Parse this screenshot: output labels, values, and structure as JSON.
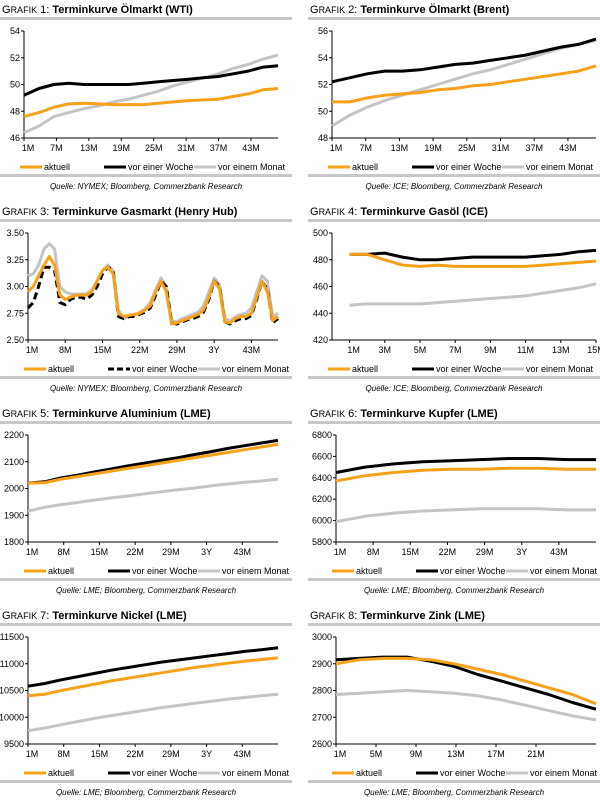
{
  "colors": {
    "aktuell": "#f7a11a",
    "woche": "#000000",
    "monat": "#c4c4c4"
  },
  "legend": [
    "aktuell",
    "vor einer Woche",
    "vor einem Monat"
  ],
  "chart_data": [
    {
      "type": "line",
      "prefix": "G",
      "prefix_small": "RAFIK",
      "num": "1",
      "title": "Terminkurve Ölmarkt (WTI)",
      "source": "Quelle: NYMEX; Bloomberg, Commerzbank Research",
      "ylim": [
        46,
        54
      ],
      "yticks": [
        "46",
        "48",
        "50",
        "52",
        "54"
      ],
      "xlim": [
        1,
        48
      ],
      "xticks": [
        {
          "label": "1M",
          "x": 1
        },
        {
          "label": "7M",
          "x": 7
        },
        {
          "label": "13M",
          "x": 13
        },
        {
          "label": "19M",
          "x": 19
        },
        {
          "label": "25M",
          "x": 25
        },
        {
          "label": "31M",
          "x": 31
        },
        {
          "label": "37M",
          "x": 37
        },
        {
          "label": "43M",
          "x": 43
        }
      ],
      "series": [
        {
          "name": "aktuell",
          "values": [
            47.6,
            47.9,
            48.3,
            48.55,
            48.6,
            48.55,
            48.5,
            48.5,
            48.5,
            48.6,
            48.7,
            48.8,
            48.85,
            48.9,
            49.1,
            49.3,
            49.6,
            49.7
          ]
        },
        {
          "name": "vor einer Woche",
          "values": [
            49.2,
            49.7,
            50.0,
            50.1,
            50.0,
            50.0,
            50.0,
            50.0,
            50.1,
            50.2,
            50.3,
            50.4,
            50.5,
            50.6,
            50.8,
            51.0,
            51.3,
            51.4
          ]
        },
        {
          "name": "vor einem Monat",
          "values": [
            46.4,
            46.9,
            47.6,
            47.9,
            48.2,
            48.4,
            48.7,
            48.9,
            49.2,
            49.5,
            49.9,
            50.2,
            50.5,
            50.8,
            51.2,
            51.5,
            51.9,
            52.2
          ]
        }
      ]
    },
    {
      "type": "line",
      "prefix": "G",
      "prefix_small": "RAFIK",
      "num": "2",
      "title": "Terminkurve Ölmarkt (Brent)",
      "source": "Quelle: ICE; Bloomberg, Commerzbank Research",
      "ylim": [
        48,
        56
      ],
      "yticks": [
        "48",
        "50",
        "52",
        "54",
        "56"
      ],
      "xlim": [
        1,
        48
      ],
      "xticks": [
        {
          "label": "1M",
          "x": 1
        },
        {
          "label": "7M",
          "x": 7
        },
        {
          "label": "13M",
          "x": 13
        },
        {
          "label": "19M",
          "x": 19
        },
        {
          "label": "25M",
          "x": 25
        },
        {
          "label": "31M",
          "x": 31
        },
        {
          "label": "37M",
          "x": 37
        },
        {
          "label": "43M",
          "x": 43
        }
      ],
      "series": [
        {
          "name": "aktuell",
          "values": [
            50.7,
            50.7,
            51.0,
            51.2,
            51.3,
            51.4,
            51.6,
            51.7,
            51.9,
            52.0,
            52.2,
            52.4,
            52.6,
            52.8,
            53.0,
            53.4
          ]
        },
        {
          "name": "vor einer Woche",
          "values": [
            52.2,
            52.5,
            52.8,
            53.0,
            53.0,
            53.1,
            53.3,
            53.5,
            53.6,
            53.8,
            54.0,
            54.2,
            54.5,
            54.8,
            55.0,
            55.4
          ]
        },
        {
          "name": "vor einem Monat",
          "values": [
            48.9,
            49.7,
            50.3,
            50.8,
            51.2,
            51.6,
            52.0,
            52.4,
            52.8,
            53.1,
            53.5,
            53.9,
            54.3,
            54.7,
            55.0,
            55.3
          ]
        }
      ]
    },
    {
      "type": "line",
      "prefix": "G",
      "prefix_small": "RAFIK",
      "num": "3",
      "title": "Terminkurve Gasmarkt (Henry Hub)",
      "source": "Quelle: NYMEX; Bloomberg, Commerzbank Research",
      "ylim": [
        2.5,
        3.5
      ],
      "yticks": [
        "2.50",
        "2.75",
        "3.00",
        "3.25",
        "3.50"
      ],
      "xlim": [
        1,
        48
      ],
      "xticks": [
        {
          "label": "1M",
          "x": 1
        },
        {
          "label": "8M",
          "x": 8
        },
        {
          "label": "15M",
          "x": 15
        },
        {
          "label": "22M",
          "x": 22
        },
        {
          "label": "29M",
          "x": 29
        },
        {
          "label": "3Y",
          "x": 36
        },
        {
          "label": "43M",
          "x": 43
        }
      ],
      "series": [
        {
          "name": "aktuell",
          "values": [
            2.95,
            3.0,
            3.1,
            3.2,
            3.28,
            3.2,
            2.92,
            2.88,
            2.9,
            2.92,
            2.92,
            2.92,
            2.95,
            3.05,
            3.15,
            3.18,
            3.12,
            2.75,
            2.72,
            2.73,
            2.74,
            2.75,
            2.78,
            2.82,
            2.95,
            3.05,
            2.95,
            2.65,
            2.66,
            2.68,
            2.7,
            2.72,
            2.74,
            2.78,
            2.9,
            3.05,
            2.98,
            2.67,
            2.66,
            2.7,
            2.72,
            2.72,
            2.75,
            2.9,
            3.05,
            2.95,
            2.68,
            2.72
          ]
        },
        {
          "name": "vor einer Woche",
          "values": [
            2.8,
            2.85,
            3.0,
            3.18,
            3.18,
            3.15,
            2.85,
            2.83,
            2.88,
            2.9,
            2.9,
            2.88,
            2.92,
            3.0,
            3.12,
            3.18,
            3.15,
            2.72,
            2.7,
            2.72,
            2.72,
            2.74,
            2.76,
            2.8,
            2.92,
            3.05,
            3.0,
            2.66,
            2.65,
            2.67,
            2.69,
            2.7,
            2.72,
            2.76,
            2.88,
            3.05,
            3.0,
            2.67,
            2.65,
            2.68,
            2.7,
            2.7,
            2.73,
            2.88,
            3.05,
            2.97,
            2.66,
            2.7
          ]
        },
        {
          "name": "vor einem Monat",
          "values": [
            3.1,
            3.12,
            3.2,
            3.35,
            3.4,
            3.35,
            3.0,
            2.95,
            2.93,
            2.93,
            2.93,
            2.93,
            2.97,
            3.05,
            3.15,
            3.2,
            3.15,
            2.78,
            2.7,
            2.72,
            2.73,
            2.76,
            2.79,
            2.85,
            2.97,
            3.08,
            3.0,
            2.68,
            2.67,
            2.7,
            2.72,
            2.74,
            2.76,
            2.82,
            2.95,
            3.08,
            3.02,
            2.7,
            2.68,
            2.72,
            2.74,
            2.75,
            2.8,
            2.95,
            3.1,
            3.05,
            2.72,
            2.75
          ]
        }
      ]
    },
    {
      "type": "line",
      "prefix": "G",
      "prefix_small": "RAFIK",
      "num": "4",
      "title": "Terminkurve Gasöl (ICE)",
      "source": "Quelle: ICE; Bloomberg, Commerzbank Research",
      "ylim": [
        420,
        500
      ],
      "yticks": [
        "420",
        "440",
        "460",
        "480",
        "500"
      ],
      "xlim": [
        0,
        15
      ],
      "xticks": [
        {
          "label": "1M",
          "x": 1
        },
        {
          "label": "3M",
          "x": 3
        },
        {
          "label": "5M",
          "x": 5
        },
        {
          "label": "7M",
          "x": 7
        },
        {
          "label": "9M",
          "x": 9
        },
        {
          "label": "11M",
          "x": 11
        },
        {
          "label": "13M",
          "x": 13
        },
        {
          "label": "15M",
          "x": 15
        }
      ],
      "series": [
        {
          "name": "aktuell",
          "values": [
            484,
            484,
            480,
            476,
            475,
            476,
            475,
            475,
            475,
            475,
            475,
            476,
            477,
            478,
            479
          ],
          "x0": 1
        },
        {
          "name": "vor einer Woche",
          "values": [
            484,
            484,
            485,
            482,
            480,
            480,
            481,
            482,
            482,
            482,
            482,
            483,
            484,
            486,
            487
          ],
          "x0": 1
        },
        {
          "name": "vor einem Monat",
          "values": [
            446,
            447,
            447,
            447,
            447,
            448,
            449,
            450,
            451,
            452,
            453,
            455,
            457,
            459,
            462
          ],
          "x0": 1
        }
      ]
    },
    {
      "type": "line",
      "prefix": "G",
      "prefix_small": "RAFIK",
      "num": "5",
      "title": "Terminkurve Aluminium (LME)",
      "source": "Quelle: LME; Bloomberg, Commerzbank Research",
      "ylim": [
        1800,
        2200
      ],
      "yticks": [
        "1800",
        "1900",
        "2000",
        "2100",
        "2200"
      ],
      "xlim": [
        1,
        50
      ],
      "xticks": [
        {
          "label": "1M",
          "x": 1
        },
        {
          "label": "8M",
          "x": 8
        },
        {
          "label": "15M",
          "x": 15
        },
        {
          "label": "22M",
          "x": 22
        },
        {
          "label": "29M",
          "x": 29
        },
        {
          "label": "3Y",
          "x": 36
        },
        {
          "label": "43M",
          "x": 43
        }
      ],
      "series": [
        {
          "name": "aktuell",
          "values": [
            2020,
            2022,
            2035,
            2045,
            2055,
            2065,
            2075,
            2085,
            2095,
            2105,
            2115,
            2125,
            2135,
            2145,
            2155,
            2165
          ]
        },
        {
          "name": "vor einer Woche",
          "values": [
            2020,
            2025,
            2040,
            2050,
            2062,
            2073,
            2085,
            2095,
            2105,
            2115,
            2127,
            2138,
            2150,
            2160,
            2170,
            2180
          ]
        },
        {
          "name": "vor einem Monat",
          "values": [
            1915,
            1930,
            1940,
            1948,
            1957,
            1965,
            1972,
            1980,
            1988,
            1995,
            2002,
            2010,
            2017,
            2023,
            2028,
            2035
          ]
        }
      ]
    },
    {
      "type": "line",
      "prefix": "G",
      "prefix_small": "RAFIK",
      "num": "6",
      "title": "Terminkurve Kupfer (LME)",
      "source": "Quelle: LME; Bloomberg, Commerzbank Research",
      "ylim": [
        5800,
        6800
      ],
      "yticks": [
        "5800",
        "6000",
        "6200",
        "6400",
        "6600",
        "6800"
      ],
      "xlim": [
        1,
        50
      ],
      "xticks": [
        {
          "label": "1M",
          "x": 1
        },
        {
          "label": "8M",
          "x": 8
        },
        {
          "label": "15M",
          "x": 15
        },
        {
          "label": "22M",
          "x": 22
        },
        {
          "label": "29M",
          "x": 29
        },
        {
          "label": "3Y",
          "x": 36
        },
        {
          "label": "43M",
          "x": 43
        }
      ],
      "series": [
        {
          "name": "aktuell",
          "values": [
            6370,
            6420,
            6450,
            6470,
            6480,
            6480,
            6490,
            6490,
            6480,
            6480
          ]
        },
        {
          "name": "vor einer Woche",
          "values": [
            6450,
            6500,
            6530,
            6550,
            6560,
            6570,
            6580,
            6580,
            6570,
            6570
          ]
        },
        {
          "name": "vor einem Monat",
          "values": [
            5990,
            6040,
            6070,
            6090,
            6100,
            6110,
            6110,
            6110,
            6100,
            6100
          ]
        }
      ]
    },
    {
      "type": "line",
      "prefix": "G",
      "prefix_small": "RAFIK",
      "num": "7",
      "title": "Terminkurve Nickel (LME)",
      "source": "Quelle: LME; Bloomberg, Commerzbank Research",
      "ylim": [
        9500,
        11500
      ],
      "yticks": [
        "9500",
        "10000",
        "10500",
        "11000",
        "11500"
      ],
      "xlim": [
        1,
        50
      ],
      "xticks": [
        {
          "label": "1M",
          "x": 1
        },
        {
          "label": "8M",
          "x": 8
        },
        {
          "label": "15M",
          "x": 15
        },
        {
          "label": "22M",
          "x": 22
        },
        {
          "label": "29M",
          "x": 29
        },
        {
          "label": "3Y",
          "x": 36
        },
        {
          "label": "43M",
          "x": 43
        }
      ],
      "series": [
        {
          "name": "aktuell",
          "values": [
            10400,
            10430,
            10500,
            10560,
            10620,
            10680,
            10730,
            10780,
            10830,
            10880,
            10930,
            10970,
            11010,
            11050,
            11080,
            11110
          ]
        },
        {
          "name": "vor einer Woche",
          "values": [
            10580,
            10630,
            10700,
            10760,
            10820,
            10880,
            10930,
            10980,
            11030,
            11070,
            11110,
            11150,
            11190,
            11230,
            11260,
            11300
          ]
        },
        {
          "name": "vor einem Monat",
          "values": [
            9750,
            9800,
            9860,
            9920,
            9980,
            10030,
            10080,
            10130,
            10180,
            10220,
            10260,
            10300,
            10340,
            10370,
            10400,
            10430
          ]
        }
      ]
    },
    {
      "type": "line",
      "prefix": "G",
      "prefix_small": "RAFIK",
      "num": "8",
      "title": "Terminkurve Zink (LME)",
      "source": "Quelle: LME; Bloomberg, Commerzbank Research",
      "ylim": [
        2600,
        3000
      ],
      "yticks": [
        "2600",
        "2700",
        "2800",
        "2900",
        "3000"
      ],
      "xlim": [
        1,
        27
      ],
      "xticks": [
        {
          "label": "1M",
          "x": 1
        },
        {
          "label": "5M",
          "x": 5
        },
        {
          "label": "9M",
          "x": 9
        },
        {
          "label": "13M",
          "x": 13
        },
        {
          "label": "17M",
          "x": 17
        },
        {
          "label": "21M",
          "x": 21
        }
      ],
      "series": [
        {
          "name": "aktuell",
          "values": [
            2900,
            2915,
            2920,
            2920,
            2915,
            2900,
            2880,
            2860,
            2835,
            2810,
            2785,
            2750
          ]
        },
        {
          "name": "vor einer Woche",
          "values": [
            2915,
            2920,
            2925,
            2925,
            2910,
            2890,
            2860,
            2835,
            2810,
            2785,
            2755,
            2730
          ]
        },
        {
          "name": "vor einem Monat",
          "values": [
            2785,
            2790,
            2795,
            2800,
            2795,
            2790,
            2780,
            2765,
            2745,
            2725,
            2705,
            2690
          ]
        }
      ]
    }
  ]
}
